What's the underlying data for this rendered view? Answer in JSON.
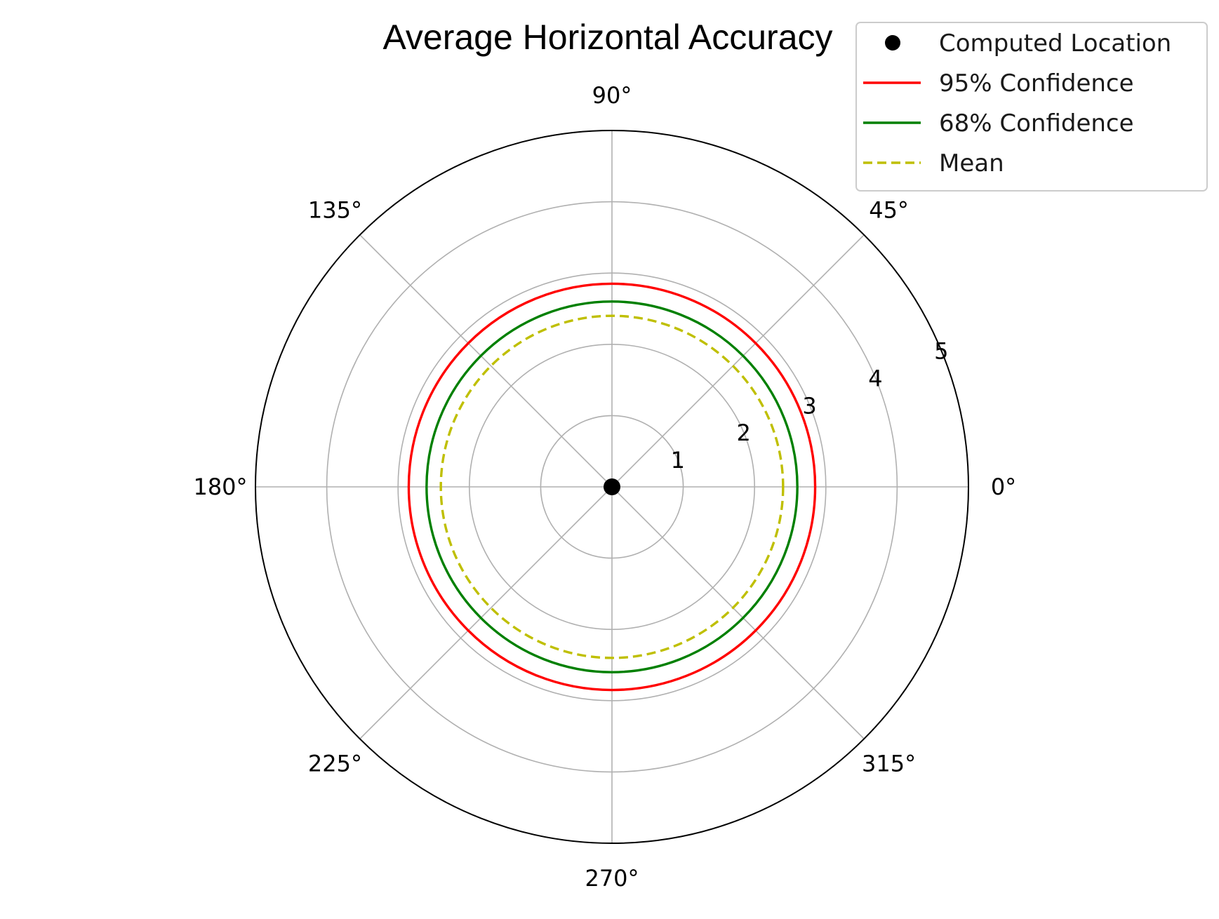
{
  "chart_data": {
    "type": "scatter",
    "projection": "polar",
    "title": "Average Horizontal Accuracy",
    "angle_ticks": [
      "0°",
      "45°",
      "90°",
      "135°",
      "180°",
      "225°",
      "270°",
      "315°"
    ],
    "angle_tick_values": [
      0,
      45,
      90,
      135,
      180,
      225,
      270,
      315
    ],
    "radial_ticks": [
      "1",
      "2",
      "3",
      "4",
      "5"
    ],
    "radial_tick_values": [
      1,
      2,
      3,
      4,
      5
    ],
    "rlim": [
      0,
      5
    ],
    "grid": true,
    "legend_position": "top-right",
    "series": [
      {
        "name": "Computed Location",
        "kind": "point",
        "r": 0,
        "theta": 0,
        "color": "#000000"
      },
      {
        "name": "95% Confidence",
        "kind": "circle",
        "r": 2.85,
        "color": "#ff0000",
        "linestyle": "solid"
      },
      {
        "name": "68% Confidence",
        "kind": "circle",
        "r": 2.6,
        "color": "#008000",
        "linestyle": "solid"
      },
      {
        "name": "Mean",
        "kind": "circle",
        "r": 2.4,
        "color": "#bfbf00",
        "linestyle": "dashed"
      }
    ]
  }
}
